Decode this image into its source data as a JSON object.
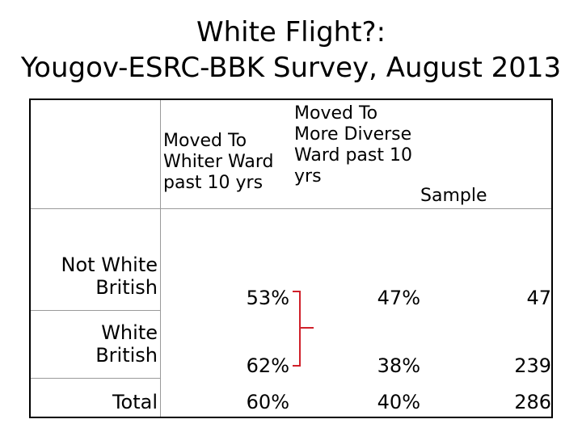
{
  "title": {
    "line1": "White Flight?:",
    "line2": "Yougov-ESRC-BBK Survey, August 2013"
  },
  "table": {
    "headers": {
      "col1": [
        "Moved  To",
        "Whiter Ward",
        "past 10 yrs"
      ],
      "col2": [
        "Moved  To",
        "More Diverse",
        "Ward past 10",
        "yrs"
      ],
      "col3": "Sample"
    },
    "rows": [
      {
        "label": [
          "Not White",
          "British"
        ],
        "whiter": "53%",
        "diverse": "47%",
        "sample": "47"
      },
      {
        "label": [
          "White",
          "British"
        ],
        "whiter": "62%",
        "diverse": "38%",
        "sample": "239"
      },
      {
        "label": [
          "Total"
        ],
        "whiter": "60%",
        "diverse": "40%",
        "sample": "286"
      }
    ]
  },
  "colors": {
    "bracket": "#d0202a",
    "grid": "#9a9a9a"
  }
}
